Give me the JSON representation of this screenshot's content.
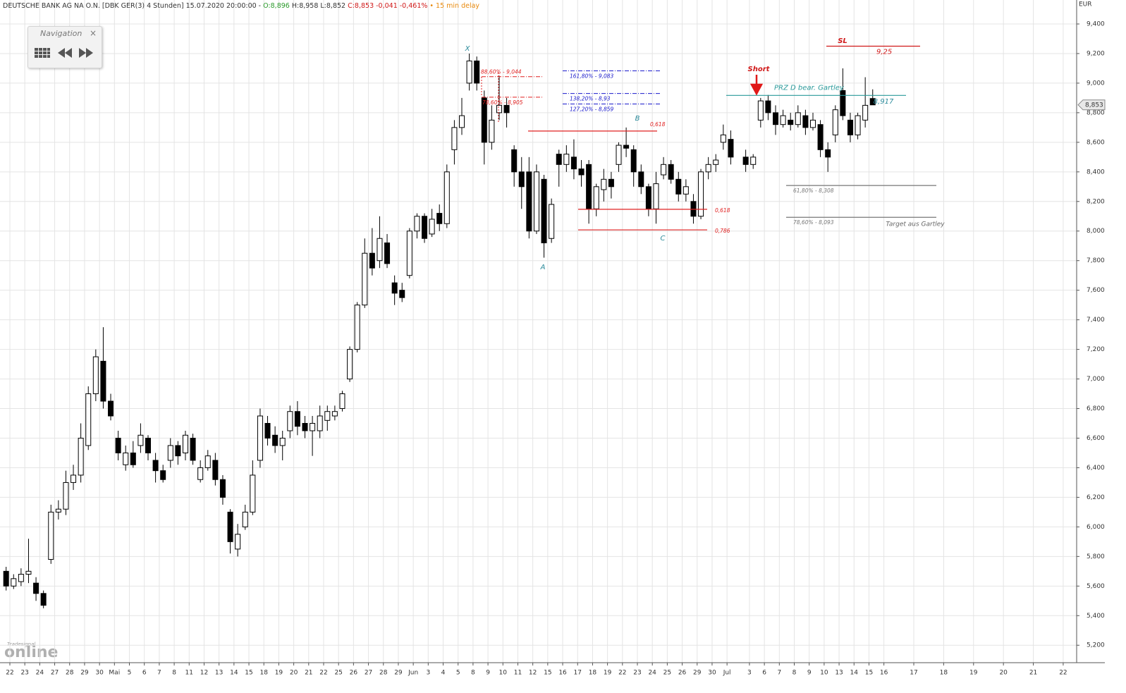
{
  "chart_data": {
    "type": "candlestick",
    "title": "DEUTSCHE BANK AG NA O.N. [DBK GER(3) 4 Stunden] 15.07.2020 20:00:00 -",
    "quote": [
      "O:8,896",
      "H:8,958",
      "L:8,852",
      "C:8,853",
      "-0,041",
      "-0,461%"
    ],
    "delay": "• 15 min delay",
    "navigation": {
      "title": "Navigation",
      "close": "×"
    },
    "y_unit": "EUR",
    "logo": {
      "small": "Tradesignal",
      "large": "online"
    },
    "last_price_label": "8,853",
    "grid": true,
    "up_color": "#ffffff",
    "down_color": "#000000",
    "xlim": [
      -0.66,
      71.4
    ],
    "ylim": [
      5.082,
      9.562
    ],
    "yticks": [
      {
        "value": 5.2,
        "label": "5,200"
      },
      {
        "value": 5.4,
        "label": "5,400"
      },
      {
        "value": 5.6,
        "label": "5,600"
      },
      {
        "value": 5.8,
        "label": "5,800"
      },
      {
        "value": 6.0,
        "label": "6,000"
      },
      {
        "value": 6.2,
        "label": "6,200"
      },
      {
        "value": 6.4,
        "label": "6,400"
      },
      {
        "value": 6.6,
        "label": "6,600"
      },
      {
        "value": 6.8,
        "label": "6,800"
      },
      {
        "value": 7.0,
        "label": "7,000"
      },
      {
        "value": 7.2,
        "label": "7,200"
      },
      {
        "value": 7.4,
        "label": "7,400"
      },
      {
        "value": 7.6,
        "label": "7,600"
      },
      {
        "value": 7.8,
        "label": "7,800"
      },
      {
        "value": 8.0,
        "label": "8,000"
      },
      {
        "value": 8.2,
        "label": "8,200"
      },
      {
        "value": 8.4,
        "label": "8,400"
      },
      {
        "value": 8.6,
        "label": "8,600"
      },
      {
        "value": 8.8,
        "label": "8,800"
      },
      {
        "value": 9.0,
        "label": "9,000"
      },
      {
        "value": 9.2,
        "label": "9,200"
      },
      {
        "value": 9.4,
        "label": "9,400"
      }
    ],
    "xticks": [
      {
        "value": 0,
        "label": "22"
      },
      {
        "value": 1,
        "label": "23"
      },
      {
        "value": 2,
        "label": "24"
      },
      {
        "value": 3,
        "label": "27"
      },
      {
        "value": 4,
        "label": "28"
      },
      {
        "value": 5,
        "label": "29"
      },
      {
        "value": 6,
        "label": "30"
      },
      {
        "value": 7,
        "label": "Mai"
      },
      {
        "value": 8,
        "label": "5"
      },
      {
        "value": 9,
        "label": "6"
      },
      {
        "value": 10,
        "label": "7"
      },
      {
        "value": 11,
        "label": "8"
      },
      {
        "value": 12,
        "label": "11"
      },
      {
        "value": 13,
        "label": "12"
      },
      {
        "value": 14,
        "label": "13"
      },
      {
        "value": 15,
        "label": "14"
      },
      {
        "value": 16,
        "label": "15"
      },
      {
        "value": 17,
        "label": "18"
      },
      {
        "value": 18,
        "label": "19"
      },
      {
        "value": 19,
        "label": "20"
      },
      {
        "value": 20,
        "label": "21"
      },
      {
        "value": 21,
        "label": "22"
      },
      {
        "value": 22,
        "label": "25"
      },
      {
        "value": 23,
        "label": "26"
      },
      {
        "value": 24,
        "label": "27"
      },
      {
        "value": 25,
        "label": "28"
      },
      {
        "value": 26,
        "label": "29"
      },
      {
        "value": 27,
        "label": "Jun"
      },
      {
        "value": 28,
        "label": "3"
      },
      {
        "value": 29,
        "label": "4"
      },
      {
        "value": 30,
        "label": "5"
      },
      {
        "value": 31,
        "label": "8"
      },
      {
        "value": 32,
        "label": "9"
      },
      {
        "value": 33,
        "label": "10"
      },
      {
        "value": 34,
        "label": "11"
      },
      {
        "value": 35,
        "label": "12"
      },
      {
        "value": 36,
        "label": "15"
      },
      {
        "value": 37,
        "label": "16"
      },
      {
        "value": 38,
        "label": "17"
      },
      {
        "value": 39,
        "label": "18"
      },
      {
        "value": 40,
        "label": "19"
      },
      {
        "value": 41,
        "label": "22"
      },
      {
        "value": 42,
        "label": "23"
      },
      {
        "value": 43,
        "label": "24"
      },
      {
        "value": 44,
        "label": "25"
      },
      {
        "value": 45,
        "label": "26"
      },
      {
        "value": 46,
        "label": "29"
      },
      {
        "value": 47,
        "label": "30"
      },
      {
        "value": 48,
        "label": "Jul"
      },
      {
        "value": 49.5,
        "label": "3"
      },
      {
        "value": 50.5,
        "label": "6"
      },
      {
        "value": 51.5,
        "label": "7"
      },
      {
        "value": 52.5,
        "label": "8"
      },
      {
        "value": 53.5,
        "label": "9"
      },
      {
        "value": 54.5,
        "label": "10"
      },
      {
        "value": 55.5,
        "label": "13"
      },
      {
        "value": 56.5,
        "label": "14"
      },
      {
        "value": 57.5,
        "label": "15"
      },
      {
        "value": 58.5,
        "label": "16"
      },
      {
        "value": 60.5,
        "label": "17"
      },
      {
        "value": 62.5,
        "label": "18"
      },
      {
        "value": 64.5,
        "label": "19"
      },
      {
        "value": 66.5,
        "label": "20"
      },
      {
        "value": 68.5,
        "label": "21"
      },
      {
        "value": 70.5,
        "label": "22"
      }
    ],
    "x": [
      -0.25,
      0.25,
      0.75,
      1.25,
      1.75,
      2.25,
      2.75,
      3.25,
      3.75,
      4.25,
      4.75,
      5.25,
      5.75,
      6.25,
      6.75,
      7.25,
      7.75,
      8.25,
      8.75,
      9.25,
      9.75,
      10.25,
      10.75,
      11.25,
      11.75,
      12.25,
      12.75,
      13.25,
      13.75,
      14.25,
      14.75,
      15.25,
      15.75,
      16.25,
      16.75,
      17.25,
      17.75,
      18.25,
      18.75,
      19.25,
      19.75,
      20.25,
      20.75,
      21.25,
      21.75,
      22.25,
      22.75,
      23.25,
      23.75,
      24.25,
      24.75,
      25.25,
      25.75,
      26.25,
      26.75,
      27.25,
      27.75,
      28.25,
      28.75,
      29.25,
      29.75,
      30.25,
      30.75,
      31.25,
      31.75,
      32.25,
      32.75,
      33.25,
      33.75,
      34.25,
      34.75,
      35.25,
      35.75,
      36.25,
      36.75,
      37.25,
      37.75,
      38.25,
      38.75,
      39.25,
      39.75,
      40.25,
      40.75,
      41.25,
      41.75,
      42.25,
      42.75,
      43.25,
      43.75,
      44.25,
      44.75,
      45.25,
      45.75,
      46.25,
      46.75,
      47.25,
      47.75,
      48.25,
      49.25,
      49.75,
      50.25,
      50.75,
      51.25,
      51.75,
      52.25,
      52.75,
      53.25,
      53.75,
      54.25,
      54.75,
      55.25,
      55.75,
      56.25,
      56.75,
      57.25,
      57.75
    ],
    "open": [
      5.7,
      5.6,
      5.63,
      5.68,
      5.62,
      5.55,
      5.78,
      6.1,
      6.12,
      6.3,
      6.35,
      6.55,
      6.9,
      7.12,
      6.85,
      6.6,
      6.42,
      6.5,
      6.55,
      6.6,
      6.45,
      6.38,
      6.45,
      6.55,
      6.5,
      6.6,
      6.32,
      6.4,
      6.45,
      6.32,
      6.1,
      5.85,
      6.0,
      6.1,
      6.45,
      6.7,
      6.62,
      6.55,
      6.65,
      6.78,
      6.7,
      6.65,
      6.65,
      6.72,
      6.75,
      6.8,
      7.0,
      7.2,
      7.5,
      7.85,
      7.8,
      7.92,
      7.65,
      7.6,
      7.7,
      8.0,
      8.1,
      7.98,
      8.12,
      8.05,
      8.55,
      8.7,
      9.0,
      9.15,
      8.9,
      8.6,
      8.8,
      8.85,
      8.55,
      8.4,
      8.4,
      8.0,
      8.35,
      7.95,
      8.52,
      8.45,
      8.5,
      8.42,
      8.45,
      8.15,
      8.28,
      8.35,
      8.45,
      8.58,
      8.55,
      8.4,
      8.3,
      8.15,
      8.38,
      8.45,
      8.35,
      8.25,
      8.2,
      8.1,
      8.4,
      8.45,
      8.6,
      8.62,
      8.5,
      8.45,
      8.75,
      8.88,
      8.8,
      8.72,
      8.75,
      8.72,
      8.78,
      8.7,
      8.72,
      8.55,
      8.65,
      8.95,
      8.75,
      8.65,
      8.75,
      8.896
    ],
    "high": [
      5.73,
      5.68,
      5.72,
      5.92,
      5.66,
      5.57,
      6.15,
      6.18,
      6.38,
      6.42,
      6.7,
      6.95,
      7.2,
      7.35,
      6.9,
      6.65,
      6.55,
      6.58,
      6.7,
      6.62,
      6.5,
      6.42,
      6.6,
      6.58,
      6.65,
      6.63,
      6.45,
      6.52,
      6.5,
      6.35,
      6.12,
      6.02,
      6.15,
      6.45,
      6.8,
      6.75,
      6.68,
      6.65,
      6.82,
      6.85,
      6.75,
      6.75,
      6.82,
      6.82,
      6.82,
      6.92,
      7.22,
      7.52,
      7.95,
      8.02,
      8.1,
      7.98,
      7.7,
      7.65,
      8.02,
      8.12,
      8.12,
      8.15,
      8.18,
      8.45,
      8.75,
      8.9,
      9.2,
      9.18,
      8.95,
      8.85,
      9.05,
      8.9,
      8.58,
      8.5,
      8.5,
      8.45,
      8.38,
      8.22,
      8.55,
      8.58,
      8.62,
      8.48,
      8.48,
      8.32,
      8.42,
      8.4,
      8.6,
      8.7,
      8.58,
      8.45,
      8.32,
      8.4,
      8.5,
      8.48,
      8.4,
      8.35,
      8.25,
      8.42,
      8.5,
      8.52,
      8.72,
      8.68,
      8.55,
      8.52,
      8.9,
      8.92,
      8.85,
      8.82,
      8.8,
      8.85,
      8.82,
      8.8,
      8.75,
      8.6,
      8.85,
      9.1,
      8.8,
      8.8,
      9.04,
      8.958
    ],
    "low": [
      5.57,
      5.58,
      5.6,
      5.62,
      5.5,
      5.45,
      5.75,
      6.05,
      6.08,
      6.25,
      6.3,
      6.52,
      6.85,
      6.8,
      6.72,
      6.45,
      6.38,
      6.4,
      6.5,
      6.45,
      6.3,
      6.3,
      6.4,
      6.42,
      6.45,
      6.42,
      6.3,
      6.38,
      6.28,
      6.15,
      5.82,
      5.8,
      5.98,
      6.08,
      6.4,
      6.55,
      6.5,
      6.45,
      6.6,
      6.62,
      6.6,
      6.48,
      6.6,
      6.65,
      6.72,
      6.78,
      6.98,
      7.18,
      7.48,
      7.7,
      7.75,
      7.75,
      7.5,
      7.52,
      7.68,
      7.95,
      7.92,
      7.96,
      8.0,
      8.02,
      8.45,
      8.65,
      8.95,
      8.95,
      8.45,
      8.55,
      8.75,
      8.7,
      8.3,
      8.15,
      7.95,
      7.98,
      7.82,
      7.92,
      8.3,
      8.4,
      8.35,
      8.3,
      8.05,
      8.1,
      8.2,
      8.22,
      8.4,
      8.5,
      8.3,
      8.25,
      8.1,
      8.05,
      8.35,
      8.32,
      8.2,
      8.2,
      8.05,
      8.08,
      8.35,
      8.4,
      8.55,
      8.45,
      8.4,
      8.42,
      8.7,
      8.75,
      8.65,
      8.7,
      8.68,
      8.7,
      8.65,
      8.68,
      8.5,
      8.4,
      8.6,
      8.75,
      8.6,
      8.62,
      8.7,
      8.852
    ],
    "close": [
      5.6,
      5.65,
      5.68,
      5.7,
      5.55,
      5.47,
      6.1,
      6.12,
      6.3,
      6.35,
      6.6,
      6.9,
      7.15,
      6.85,
      6.75,
      6.5,
      6.5,
      6.42,
      6.62,
      6.5,
      6.38,
      6.32,
      6.55,
      6.48,
      6.62,
      6.45,
      6.4,
      6.48,
      6.32,
      6.2,
      5.9,
      5.95,
      6.1,
      6.35,
      6.75,
      6.6,
      6.55,
      6.6,
      6.78,
      6.68,
      6.65,
      6.7,
      6.75,
      6.78,
      6.78,
      6.9,
      7.2,
      7.5,
      7.85,
      7.75,
      7.95,
      7.78,
      7.58,
      7.55,
      8.0,
      8.1,
      7.95,
      8.08,
      8.05,
      8.4,
      8.7,
      8.78,
      9.15,
      9.0,
      8.6,
      8.75,
      8.85,
      8.8,
      8.4,
      8.3,
      8.0,
      8.4,
      7.92,
      8.18,
      8.45,
      8.52,
      8.42,
      8.38,
      8.15,
      8.3,
      8.35,
      8.3,
      8.58,
      8.56,
      8.4,
      8.3,
      8.15,
      8.32,
      8.45,
      8.35,
      8.25,
      8.3,
      8.1,
      8.4,
      8.45,
      8.48,
      8.65,
      8.5,
      8.45,
      8.5,
      8.88,
      8.8,
      8.72,
      8.78,
      8.72,
      8.8,
      8.7,
      8.75,
      8.55,
      8.5,
      8.82,
      8.78,
      8.65,
      8.78,
      8.85,
      8.853
    ],
    "levels": [
      {
        "level": 9.044,
        "text": "88,60% - 9,044",
        "color": "#e02020",
        "style": "dashdot"
      },
      {
        "level": 8.905,
        "text": "78,60% - 8,905",
        "color": "#e02020",
        "style": "dashdot"
      },
      {
        "level": 9.083,
        "text": "161,80% - 9,083",
        "color": "#1a1acc",
        "style": "dashdot"
      },
      {
        "level": 8.93,
        "text": "138,20% - 8,93",
        "color": "#1a1acc",
        "style": "dashdot"
      },
      {
        "level": 8.859,
        "text": "127,20% - 8,859",
        "color": "#1a1acc",
        "style": "dashdot"
      },
      {
        "level": 8.308,
        "text": "61,80% - 8,308",
        "color": "#777777",
        "style": "solid"
      },
      {
        "level": 8.093,
        "text": "78,60% - 8,093",
        "color": "#777777",
        "style": "solid"
      },
      {
        "level": 8.917,
        "text": "PRZ D bear. Gartley",
        "color": "#2a9a9a",
        "style": "solid"
      },
      {
        "level": 9.25,
        "text": "9,25",
        "color": "#d01818",
        "style": "solid"
      }
    ],
    "ratio_lines": [
      {
        "level": 8.676,
        "text": "0,618",
        "color": "#e02020"
      },
      {
        "level": 8.147,
        "text": "0,618",
        "color": "#e02020"
      },
      {
        "level": 8.008,
        "text": "0,786",
        "color": "#e02020"
      }
    ],
    "annotations": {
      "x_point": "X",
      "a_point": "A",
      "b_point": "B",
      "c_point": "C",
      "short": "Short",
      "sl": "SL",
      "target": "Target aus Gartley",
      "prz_value": "8,917"
    }
  }
}
